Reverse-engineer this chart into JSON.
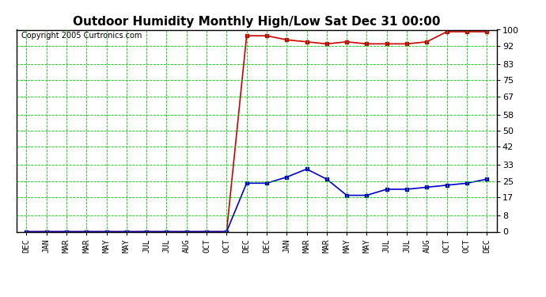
{
  "title": "Outdoor Humidity Monthly High/Low Sat Dec 31 00:00",
  "copyright": "Copyright 2005 Curtronics.com",
  "x_labels": [
    "DEC",
    "JAN",
    "MAR",
    "MAR",
    "MAY",
    "MAY",
    "JUL",
    "JUL",
    "AUG",
    "OCT",
    "OCT",
    "DEC",
    "DEC",
    "JAN",
    "MAR",
    "MAR",
    "MAY",
    "MAY",
    "JUL",
    "JUL",
    "AUG",
    "OCT",
    "OCT",
    "DEC"
  ],
  "y_ticks": [
    0,
    8,
    17,
    25,
    33,
    42,
    50,
    58,
    67,
    75,
    83,
    92,
    100
  ],
  "red_high": [
    0,
    0,
    0,
    0,
    0,
    0,
    0,
    0,
    0,
    0,
    0,
    97,
    97,
    95,
    94,
    93,
    94,
    93,
    93,
    93,
    94,
    99,
    99,
    99
  ],
  "blue_low": [
    0,
    0,
    0,
    0,
    0,
    0,
    0,
    0,
    0,
    0,
    0,
    24,
    24,
    27,
    31,
    26,
    18,
    18,
    21,
    21,
    22,
    23,
    24,
    26
  ],
  "bg_color": "#ffffff",
  "grid_color": "#00cc00",
  "red_color": "#cc0000",
  "blue_color": "#0000cc",
  "title_fontsize": 11,
  "ylim": [
    0,
    100
  ],
  "copyright_fontsize": 7
}
